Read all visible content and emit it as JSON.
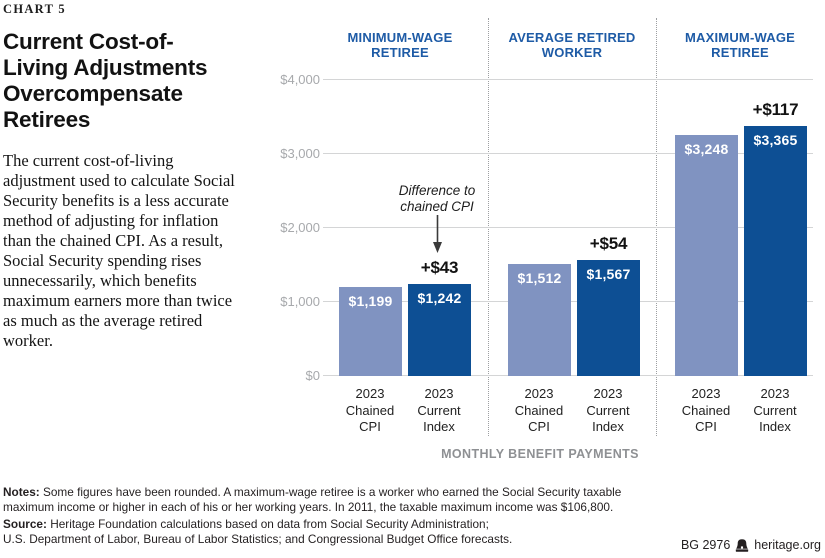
{
  "page": {
    "kicker": "CHART 5",
    "title": "Current Cost-of-\nLiving Adjustments\nOvercompensate\nRetirees",
    "description": "The current cost-of-living adjustment used to calculate Social Security benefits is a less accurate method of adjusting for inflation than the chained CPI. As a result, Social Security spending rises unnecessarily, which benefits maximum earners more than twice as much as the average retired worker."
  },
  "chart_data": {
    "type": "bar",
    "title": "Current Cost-of-Living Adjustments Overcompensate Retirees",
    "xlabel": "MONTHLY BENEFIT PAYMENTS",
    "ylim": [
      0,
      4000
    ],
    "grid": true,
    "ytick_labels": [
      "$4,000",
      "$3,000",
      "$2,000",
      "$1,000",
      "$0"
    ],
    "annotation": "Difference to\nchained CPI",
    "bar_categories": [
      "2023\nChained\nCPI",
      "2023\nCurrent\nIndex"
    ],
    "series_names": [
      "2023 Chained CPI",
      "2023 Current Index"
    ],
    "colors": {
      "chained_cpi": "#8093c1",
      "current_index": "#0d4f94"
    },
    "groups": [
      {
        "label": "MINIMUM-WAGE\nRETIREE",
        "values": [
          1199,
          1242
        ],
        "value_labels": [
          "$1,199",
          "$1,242"
        ],
        "difference": "+$43"
      },
      {
        "label": "AVERAGE RETIRED\nWORKER",
        "values": [
          1512,
          1567
        ],
        "value_labels": [
          "$1,512",
          "$1,567"
        ],
        "difference": "+$54"
      },
      {
        "label": "MAXIMUM-WAGE\nRETIREE",
        "values": [
          3248,
          3365
        ],
        "value_labels": [
          "$3,248",
          "$3,365"
        ],
        "difference": "+$117"
      }
    ]
  },
  "footer": {
    "notes_label": "Notes:",
    "notes_text": " Some figures have been rounded. A maximum-wage retiree is a worker who earned the Social Security taxable\nmaximum income or higher in each of his or her working years. In 2011, the taxable maximum income was $106,800.",
    "source_label": "Source:",
    "source_text": " Heritage Foundation calculations based on data from Social Security Administration;\nU.S. Department of Labor, Bureau of Labor Statistics; and Congressional Budget Office forecasts.",
    "doc_id": "BG 2976",
    "brand_icon": "liberty-bell-icon",
    "site": "heritage.org"
  }
}
